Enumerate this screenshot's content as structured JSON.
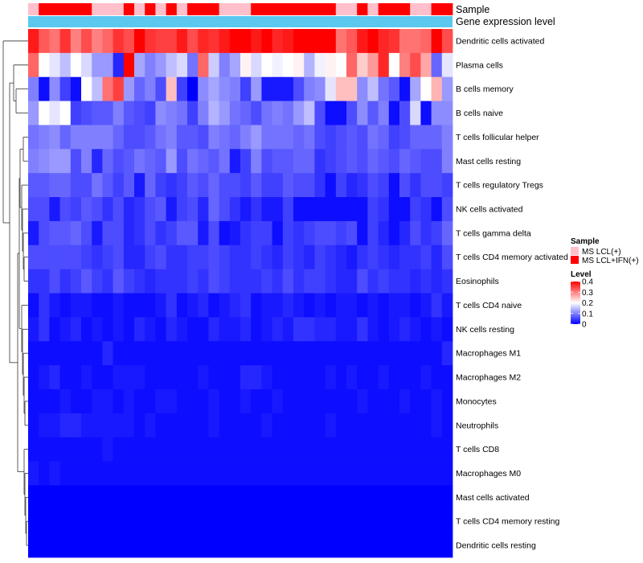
{
  "chart_data": {
    "type": "heatmap",
    "title": "",
    "annotations": {
      "sample": {
        "label": "Sample",
        "values": [
          0,
          1,
          1,
          1,
          1,
          1,
          0,
          0,
          0,
          1,
          0,
          1,
          0,
          1,
          0,
          1,
          1,
          1,
          0,
          0,
          0,
          1,
          1,
          1,
          1,
          1,
          1,
          1,
          1,
          0,
          0,
          1,
          0,
          1,
          1,
          1,
          0,
          0,
          1,
          1
        ],
        "colors": [
          "#FFC0CB",
          "#FF0000"
        ]
      },
      "gene_expression": {
        "label": "Gene expression level",
        "color": "#5BC8F0"
      }
    },
    "rows": [
      "Dendritic cells activated",
      "Plasma cells",
      "B cells memory",
      "B cells naive",
      "T cells follicular helper",
      "Mast cells resting",
      "T cells regulatory  Tregs",
      "NK cells activated",
      "T cells gamma delta",
      "T cells CD4 memory activated",
      "Eosinophils",
      "T cells CD4 naive",
      "NK cells resting",
      "Macrophages M1",
      "Macrophages M2",
      "Monocytes",
      "Neutrophils",
      "T cells CD8",
      "Macrophages M0",
      "Mast cells activated",
      "T cells CD4 memory resting",
      "Dendritic cells resting"
    ],
    "n_columns": 40,
    "values": [
      [
        0.38,
        0.33,
        0.31,
        0.36,
        0.3,
        0.34,
        0.3,
        0.32,
        0.36,
        0.34,
        0.4,
        0.36,
        0.35,
        0.35,
        0.38,
        0.34,
        0.37,
        0.36,
        0.38,
        0.4,
        0.4,
        0.38,
        0.4,
        0.37,
        0.38,
        0.4,
        0.4,
        0.4,
        0.4,
        0.31,
        0.33,
        0.38,
        0.4,
        0.37,
        0.36,
        0.31,
        0.31,
        0.32,
        0.41,
        0.34
      ],
      [
        0.32,
        0.2,
        0.18,
        0.15,
        0.2,
        0.17,
        0.12,
        0.12,
        0.03,
        0.4,
        0.13,
        0.1,
        0.12,
        0.15,
        0.17,
        0.09,
        0.32,
        0.16,
        0.1,
        0.13,
        0.21,
        0.17,
        0.2,
        0.19,
        0.2,
        0.21,
        0.14,
        0.19,
        0.21,
        0.2,
        0.32,
        0.24,
        0.28,
        0.37,
        0.2,
        0.3,
        0.34,
        0.27,
        0.08,
        0.18
      ],
      [
        0.1,
        0.01,
        0.11,
        0.05,
        0.01,
        0.2,
        0.15,
        0.31,
        0.35,
        0.12,
        0.08,
        0.1,
        0.06,
        0.25,
        0.05,
        0.0,
        0.11,
        0.13,
        0.11,
        0.1,
        0.05,
        0.12,
        0.02,
        0.02,
        0.02,
        0.06,
        0.1,
        0.11,
        0.18,
        0.25,
        0.25,
        0.11,
        0.15,
        0.09,
        0.07,
        0.01,
        0.13,
        0.2,
        0.26,
        0.12
      ],
      [
        0.12,
        0.2,
        0.18,
        0.2,
        0.05,
        0.06,
        0.07,
        0.07,
        0.1,
        0.07,
        0.06,
        0.05,
        0.11,
        0.1,
        0.09,
        0.05,
        0.1,
        0.14,
        0.12,
        0.09,
        0.08,
        0.06,
        0.09,
        0.1,
        0.09,
        0.12,
        0.15,
        0.06,
        0.01,
        0.01,
        0.06,
        0.11,
        0.07,
        0.1,
        0.01,
        0.06,
        0.17,
        0.01,
        0.11,
        0.11
      ],
      [
        0.09,
        0.1,
        0.11,
        0.08,
        0.1,
        0.1,
        0.1,
        0.1,
        0.08,
        0.06,
        0.06,
        0.07,
        0.09,
        0.1,
        0.07,
        0.07,
        0.06,
        0.1,
        0.09,
        0.08,
        0.1,
        0.12,
        0.09,
        0.09,
        0.09,
        0.08,
        0.09,
        0.06,
        0.05,
        0.06,
        0.07,
        0.06,
        0.09,
        0.08,
        0.05,
        0.06,
        0.08,
        0.08,
        0.08,
        0.1
      ],
      [
        0.1,
        0.11,
        0.12,
        0.12,
        0.06,
        0.1,
        0.03,
        0.08,
        0.06,
        0.07,
        0.09,
        0.08,
        0.07,
        0.12,
        0.06,
        0.09,
        0.08,
        0.07,
        0.09,
        0.02,
        0.05,
        0.1,
        0.06,
        0.07,
        0.07,
        0.08,
        0.08,
        0.04,
        0.05,
        0.06,
        0.07,
        0.06,
        0.08,
        0.07,
        0.06,
        0.08,
        0.07,
        0.06,
        0.06,
        0.1
      ],
      [
        0.07,
        0.07,
        0.08,
        0.08,
        0.06,
        0.06,
        0.09,
        0.07,
        0.05,
        0.07,
        0.02,
        0.08,
        0.05,
        0.04,
        0.05,
        0.07,
        0.06,
        0.08,
        0.06,
        0.06,
        0.05,
        0.07,
        0.05,
        0.05,
        0.07,
        0.06,
        0.06,
        0.04,
        0.01,
        0.05,
        0.03,
        0.04,
        0.06,
        0.05,
        0.01,
        0.06,
        0.04,
        0.06,
        0.06,
        0.05
      ],
      [
        0.06,
        0.06,
        0.02,
        0.06,
        0.05,
        0.07,
        0.06,
        0.04,
        0.06,
        0.03,
        0.04,
        0.06,
        0.07,
        0.02,
        0.05,
        0.06,
        0.03,
        0.08,
        0.06,
        0.04,
        0.02,
        0.04,
        0.02,
        0.02,
        0.05,
        0.01,
        0.01,
        0.01,
        0.01,
        0.01,
        0.01,
        0.01,
        0.05,
        0.04,
        0.01,
        0.01,
        0.05,
        0.04,
        0.01,
        0.06
      ],
      [
        0.02,
        0.06,
        0.07,
        0.07,
        0.08,
        0.06,
        0.02,
        0.06,
        0.06,
        0.03,
        0.04,
        0.06,
        0.04,
        0.05,
        0.07,
        0.07,
        0.02,
        0.06,
        0.01,
        0.02,
        0.04,
        0.05,
        0.05,
        0.01,
        0.05,
        0.04,
        0.05,
        0.06,
        0.06,
        0.05,
        0.06,
        0.01,
        0.05,
        0.03,
        0.01,
        0.03,
        0.06,
        0.04,
        0.05,
        0.08
      ],
      [
        0.06,
        0.06,
        0.06,
        0.06,
        0.06,
        0.05,
        0.04,
        0.05,
        0.06,
        0.03,
        0.03,
        0.05,
        0.06,
        0.04,
        0.04,
        0.05,
        0.05,
        0.06,
        0.05,
        0.04,
        0.04,
        0.05,
        0.04,
        0.03,
        0.05,
        0.04,
        0.03,
        0.05,
        0.04,
        0.03,
        0.02,
        0.04,
        0.05,
        0.04,
        0.03,
        0.04,
        0.04,
        0.05,
        0.03,
        0.06
      ],
      [
        0.04,
        0.04,
        0.06,
        0.04,
        0.05,
        0.07,
        0.05,
        0.04,
        0.07,
        0.05,
        0.04,
        0.03,
        0.04,
        0.04,
        0.04,
        0.05,
        0.04,
        0.06,
        0.05,
        0.04,
        0.04,
        0.04,
        0.05,
        0.04,
        0.06,
        0.04,
        0.05,
        0.05,
        0.04,
        0.03,
        0.03,
        0.06,
        0.04,
        0.05,
        0.04,
        0.04,
        0.03,
        0.04,
        0.03,
        0.04
      ],
      [
        0.01,
        0.04,
        0.02,
        0.01,
        0.02,
        0.02,
        0.01,
        0.01,
        0.02,
        0.01,
        0.01,
        0.01,
        0.02,
        0.04,
        0.01,
        0.02,
        0.03,
        0.01,
        0.02,
        0.03,
        0.04,
        0.01,
        0.02,
        0.02,
        0.03,
        0.02,
        0.01,
        0.02,
        0.01,
        0.02,
        0.02,
        0.01,
        0.02,
        0.01,
        0.02,
        0.02,
        0.01,
        0.02,
        0.04,
        0.02
      ],
      [
        0.02,
        0.04,
        0.01,
        0.02,
        0.03,
        0.01,
        0.02,
        0.01,
        0.02,
        0.01,
        0.03,
        0.02,
        0.01,
        0.03,
        0.02,
        0.01,
        0.01,
        0.03,
        0.02,
        0.02,
        0.03,
        0.01,
        0.02,
        0.03,
        0.02,
        0.04,
        0.04,
        0.03,
        0.03,
        0.02,
        0.02,
        0.04,
        0.02,
        0.01,
        0.02,
        0.03,
        0.02,
        0.01,
        0.02,
        0.01
      ],
      [
        0.01,
        0.01,
        0.01,
        0.01,
        0.01,
        0.01,
        0.01,
        0.03,
        0.01,
        0.01,
        0.01,
        0.01,
        0.01,
        0.01,
        0.01,
        0.01,
        0.01,
        0.01,
        0.01,
        0.01,
        0.01,
        0.01,
        0.01,
        0.01,
        0.01,
        0.01,
        0.01,
        0.01,
        0.01,
        0.01,
        0.01,
        0.01,
        0.01,
        0.01,
        0.01,
        0.01,
        0.01,
        0.01,
        0.01,
        0.03
      ],
      [
        0.01,
        0.02,
        0.03,
        0.01,
        0.01,
        0.02,
        0.01,
        0.01,
        0.02,
        0.02,
        0.02,
        0.01,
        0.01,
        0.01,
        0.01,
        0.01,
        0.02,
        0.01,
        0.01,
        0.01,
        0.03,
        0.03,
        0.02,
        0.01,
        0.01,
        0.01,
        0.01,
        0.01,
        0.02,
        0.01,
        0.02,
        0.01,
        0.01,
        0.02,
        0.01,
        0.01,
        0.01,
        0.02,
        0.01,
        0.01
      ],
      [
        0.01,
        0.01,
        0.01,
        0.02,
        0.01,
        0.01,
        0.02,
        0.02,
        0.01,
        0.02,
        0.01,
        0.01,
        0.02,
        0.02,
        0.01,
        0.01,
        0.01,
        0.02,
        0.01,
        0.01,
        0.02,
        0.01,
        0.01,
        0.02,
        0.01,
        0.01,
        0.01,
        0.01,
        0.01,
        0.01,
        0.01,
        0.02,
        0.01,
        0.01,
        0.01,
        0.02,
        0.01,
        0.01,
        0.02,
        0.01
      ],
      [
        0.01,
        0.02,
        0.02,
        0.03,
        0.03,
        0.02,
        0.02,
        0.02,
        0.02,
        0.02,
        0.01,
        0.02,
        0.01,
        0.01,
        0.01,
        0.01,
        0.01,
        0.02,
        0.01,
        0.01,
        0.01,
        0.01,
        0.02,
        0.01,
        0.01,
        0.01,
        0.01,
        0.01,
        0.02,
        0.01,
        0.01,
        0.01,
        0.01,
        0.01,
        0.01,
        0.01,
        0.01,
        0.01,
        0.02,
        0.01
      ],
      [
        0.01,
        0.01,
        0.01,
        0.01,
        0.01,
        0.01,
        0.01,
        0.02,
        0.01,
        0.01,
        0.01,
        0.01,
        0.01,
        0.01,
        0.01,
        0.01,
        0.01,
        0.01,
        0.01,
        0.01,
        0.01,
        0.01,
        0.01,
        0.01,
        0.01,
        0.01,
        0.01,
        0.01,
        0.01,
        0.01,
        0.01,
        0.01,
        0.01,
        0.01,
        0.01,
        0.01,
        0.01,
        0.01,
        0.01,
        0.01
      ],
      [
        0.02,
        0.01,
        0.02,
        0.01,
        0.01,
        0.01,
        0.01,
        0.01,
        0.01,
        0.01,
        0.01,
        0.01,
        0.01,
        0.01,
        0.01,
        0.01,
        0.01,
        0.01,
        0.01,
        0.01,
        0.01,
        0.01,
        0.01,
        0.01,
        0.01,
        0.01,
        0.01,
        0.01,
        0.01,
        0.01,
        0.01,
        0.01,
        0.01,
        0.01,
        0.01,
        0.01,
        0.01,
        0.01,
        0.01,
        0.01
      ],
      [
        0.0,
        0.0,
        0.0,
        0.0,
        0.0,
        0.0,
        0.0,
        0.0,
        0.0,
        0.0,
        0.0,
        0.0,
        0.0,
        0.0,
        0.0,
        0.0,
        0.0,
        0.0,
        0.0,
        0.0,
        0.0,
        0.0,
        0.0,
        0.0,
        0.0,
        0.0,
        0.0,
        0.0,
        0.0,
        0.0,
        0.0,
        0.0,
        0.0,
        0.0,
        0.0,
        0.0,
        0.0,
        0.0,
        0.0,
        0.0
      ],
      [
        0.0,
        0.0,
        0.0,
        0.0,
        0.0,
        0.0,
        0.0,
        0.0,
        0.0,
        0.0,
        0.0,
        0.0,
        0.0,
        0.0,
        0.0,
        0.0,
        0.0,
        0.0,
        0.0,
        0.0,
        0.0,
        0.0,
        0.0,
        0.0,
        0.0,
        0.0,
        0.0,
        0.0,
        0.0,
        0.0,
        0.0,
        0.0,
        0.0,
        0.0,
        0.0,
        0.0,
        0.0,
        0.0,
        0.0,
        0.0
      ],
      [
        0.0,
        0.0,
        0.0,
        0.0,
        0.0,
        0.0,
        0.0,
        0.0,
        0.0,
        0.0,
        0.0,
        0.0,
        0.0,
        0.0,
        0.0,
        0.0,
        0.0,
        0.0,
        0.0,
        0.0,
        0.0,
        0.0,
        0.0,
        0.0,
        0.0,
        0.0,
        0.0,
        0.0,
        0.0,
        0.0,
        0.0,
        0.0,
        0.0,
        0.0,
        0.0,
        0.0,
        0.0,
        0.0,
        0.0,
        0.0
      ]
    ],
    "color_scale": {
      "min": 0,
      "mid": 0.2,
      "max": 0.4,
      "low_color": "#0000FF",
      "mid_color": "#FFFFFF",
      "high_color": "#FF0000"
    },
    "legends": {
      "sample": {
        "title": "Sample",
        "entries": [
          {
            "label": "MS LCL(+)",
            "color": "#FFC0CB"
          },
          {
            "label": "MS LCL+IFN(+)",
            "color": "#FF0000"
          }
        ]
      },
      "level": {
        "title": "Level",
        "ticks": [
          {
            "value": 0.4,
            "label": "0.4"
          },
          {
            "value": 0.3,
            "label": "0.3"
          },
          {
            "value": 0.2,
            "label": "0.2"
          },
          {
            "value": 0.1,
            "label": "0.1"
          },
          {
            "value": 0,
            "label": "0"
          }
        ]
      }
    }
  }
}
